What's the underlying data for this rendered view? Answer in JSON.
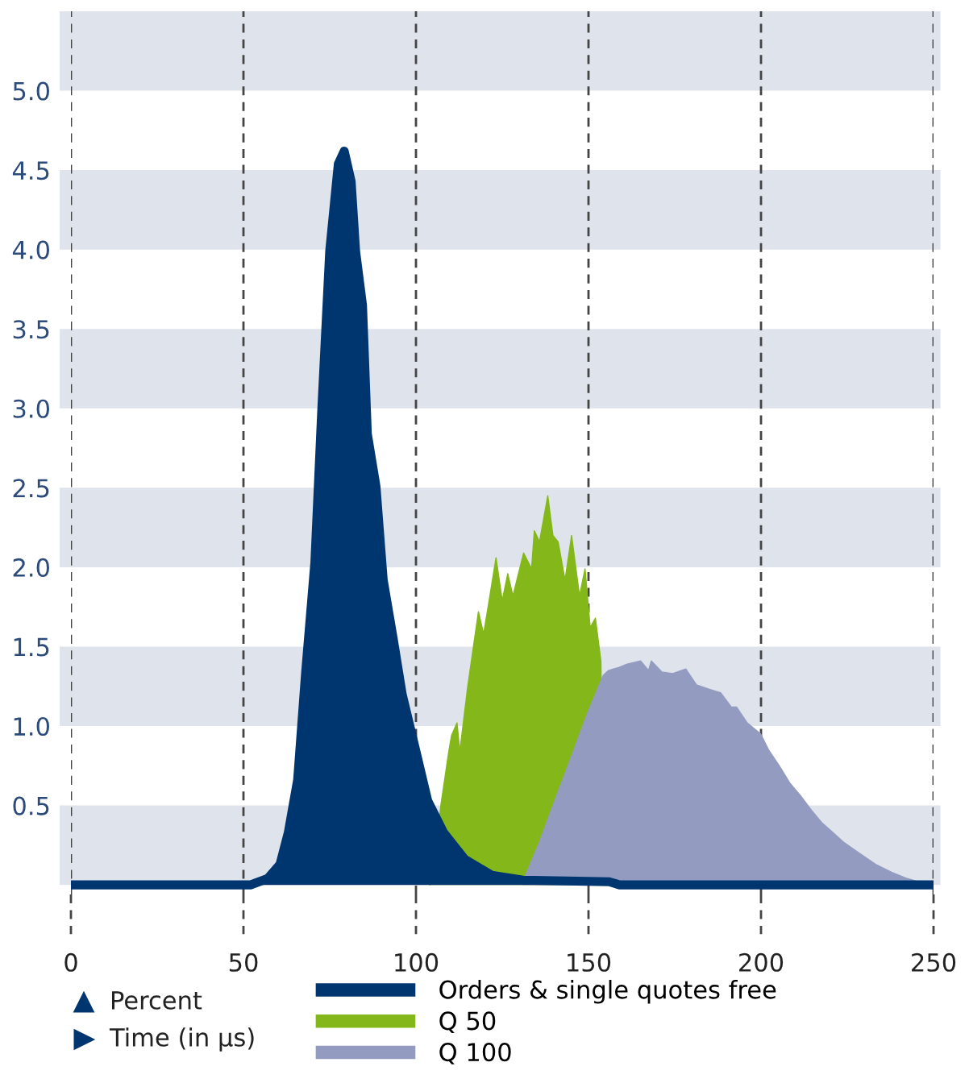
{
  "chart_data": {
    "type": "area",
    "annotations": [
      "Percent",
      "Time (in µs)"
    ],
    "xlim": [
      0,
      250
    ],
    "ylim": [
      -0.06,
      5.5
    ],
    "xticks": [
      0,
      50,
      100,
      150,
      200,
      250
    ],
    "yticks": [
      {
        "value": 0.5,
        "label": "0.5"
      },
      {
        "value": 1,
        "label": "1.0"
      },
      {
        "value": 1.5,
        "label": "1.5"
      },
      {
        "value": 2,
        "label": "2.0"
      },
      {
        "value": 2.5,
        "label": "2.5"
      },
      {
        "value": 3,
        "label": "3.0"
      },
      {
        "value": 3.5,
        "label": "3.5"
      },
      {
        "value": 4,
        "label": "4.0"
      },
      {
        "value": 4.5,
        "label": "4.5"
      },
      {
        "value": 5,
        "label": "5.0"
      }
    ],
    "grid": "x",
    "line_style": "dashed",
    "legend": "bottom",
    "bands": [
      {
        "axis": "y",
        "from": 0,
        "to": 0.5,
        "color": "#dfe3ec"
      },
      {
        "axis": "y",
        "from": 1,
        "to": 1.5,
        "color": "#dfe3ec"
      },
      {
        "axis": "y",
        "from": 2,
        "to": 2.5,
        "color": "#dfe3ec"
      },
      {
        "axis": "y",
        "from": 3,
        "to": 3.5,
        "color": "#dfe3ec"
      },
      {
        "axis": "y",
        "from": 4,
        "to": 4.5,
        "color": "#dfe3ec"
      },
      {
        "axis": "y",
        "from": 5,
        "to": 5.5,
        "color": "#dfe3ec"
      }
    ],
    "series": [
      {
        "name": "Orders & single quotes free",
        "color": "#003670",
        "x": [
          0,
          52,
          57,
          60.6,
          63,
          65.7,
          68,
          70.7,
          72.7,
          75,
          77.5,
          79.2,
          81.2,
          82.5,
          84.5,
          85.9,
          88.4,
          90.5,
          93.4,
          96,
          100,
          103.4,
          108,
          114.2,
          122,
          131,
          156,
          159,
          250
        ],
        "values": [
          0,
          0,
          0.04,
          0.13,
          0.33,
          0.66,
          1.33,
          2.03,
          2.99,
          3.99,
          4.54,
          4.62,
          4.43,
          3.99,
          3.65,
          2.84,
          2.51,
          1.92,
          1.55,
          1.2,
          0.84,
          0.53,
          0.33,
          0.16,
          0.06,
          0.03,
          0.02,
          0,
          0
        ]
      },
      {
        "name": "Q 50",
        "color": "#84b81a",
        "x": [
          104,
          106.5,
          107.2,
          109.5,
          110.3,
          111.9,
          112.7,
          115,
          118.1,
          119.6,
          121.2,
          123.2,
          125,
          126.6,
          128.1,
          131.2,
          133.5,
          134.3,
          135.8,
          138.2,
          139.7,
          141.2,
          143.2,
          145.1,
          147.4,
          149,
          150.5,
          152,
          153.6,
          154.5
        ],
        "values": [
          0,
          0.36,
          0.5,
          0.84,
          0.94,
          1.02,
          0.84,
          1.25,
          1.72,
          1.58,
          1.79,
          2.06,
          1.79,
          1.96,
          1.82,
          2.09,
          1.99,
          2.23,
          2.16,
          2.45,
          2.2,
          2.16,
          1.92,
          2.2,
          1.82,
          1.99,
          1.62,
          1.68,
          1.41,
          0
        ]
      },
      {
        "name": "Q 100",
        "color": "#939cc0",
        "x": [
          131,
          135.8,
          140.4,
          145.1,
          149.7,
          154.3,
          155.8,
          158.9,
          161.2,
          165.1,
          167.4,
          168.2,
          171.3,
          174.4,
          178.2,
          181.3,
          185.2,
          188.3,
          191.4,
          192.9,
          196,
          199.9,
          202.2,
          205.3,
          208.4,
          211.5,
          214.6,
          217.7,
          220.8,
          223.9,
          228.5,
          233.2,
          237.8,
          242.4,
          247.1,
          249.4
        ],
        "values": [
          0.02,
          0.27,
          0.54,
          0.81,
          1.08,
          1.32,
          1.35,
          1.37,
          1.39,
          1.41,
          1.35,
          1.41,
          1.34,
          1.33,
          1.36,
          1.26,
          1.23,
          1.21,
          1.12,
          1.12,
          1.02,
          0.95,
          0.85,
          0.75,
          0.64,
          0.56,
          0.47,
          0.39,
          0.33,
          0.27,
          0.2,
          0.13,
          0.08,
          0.04,
          0.01,
          0
        ]
      }
    ]
  }
}
